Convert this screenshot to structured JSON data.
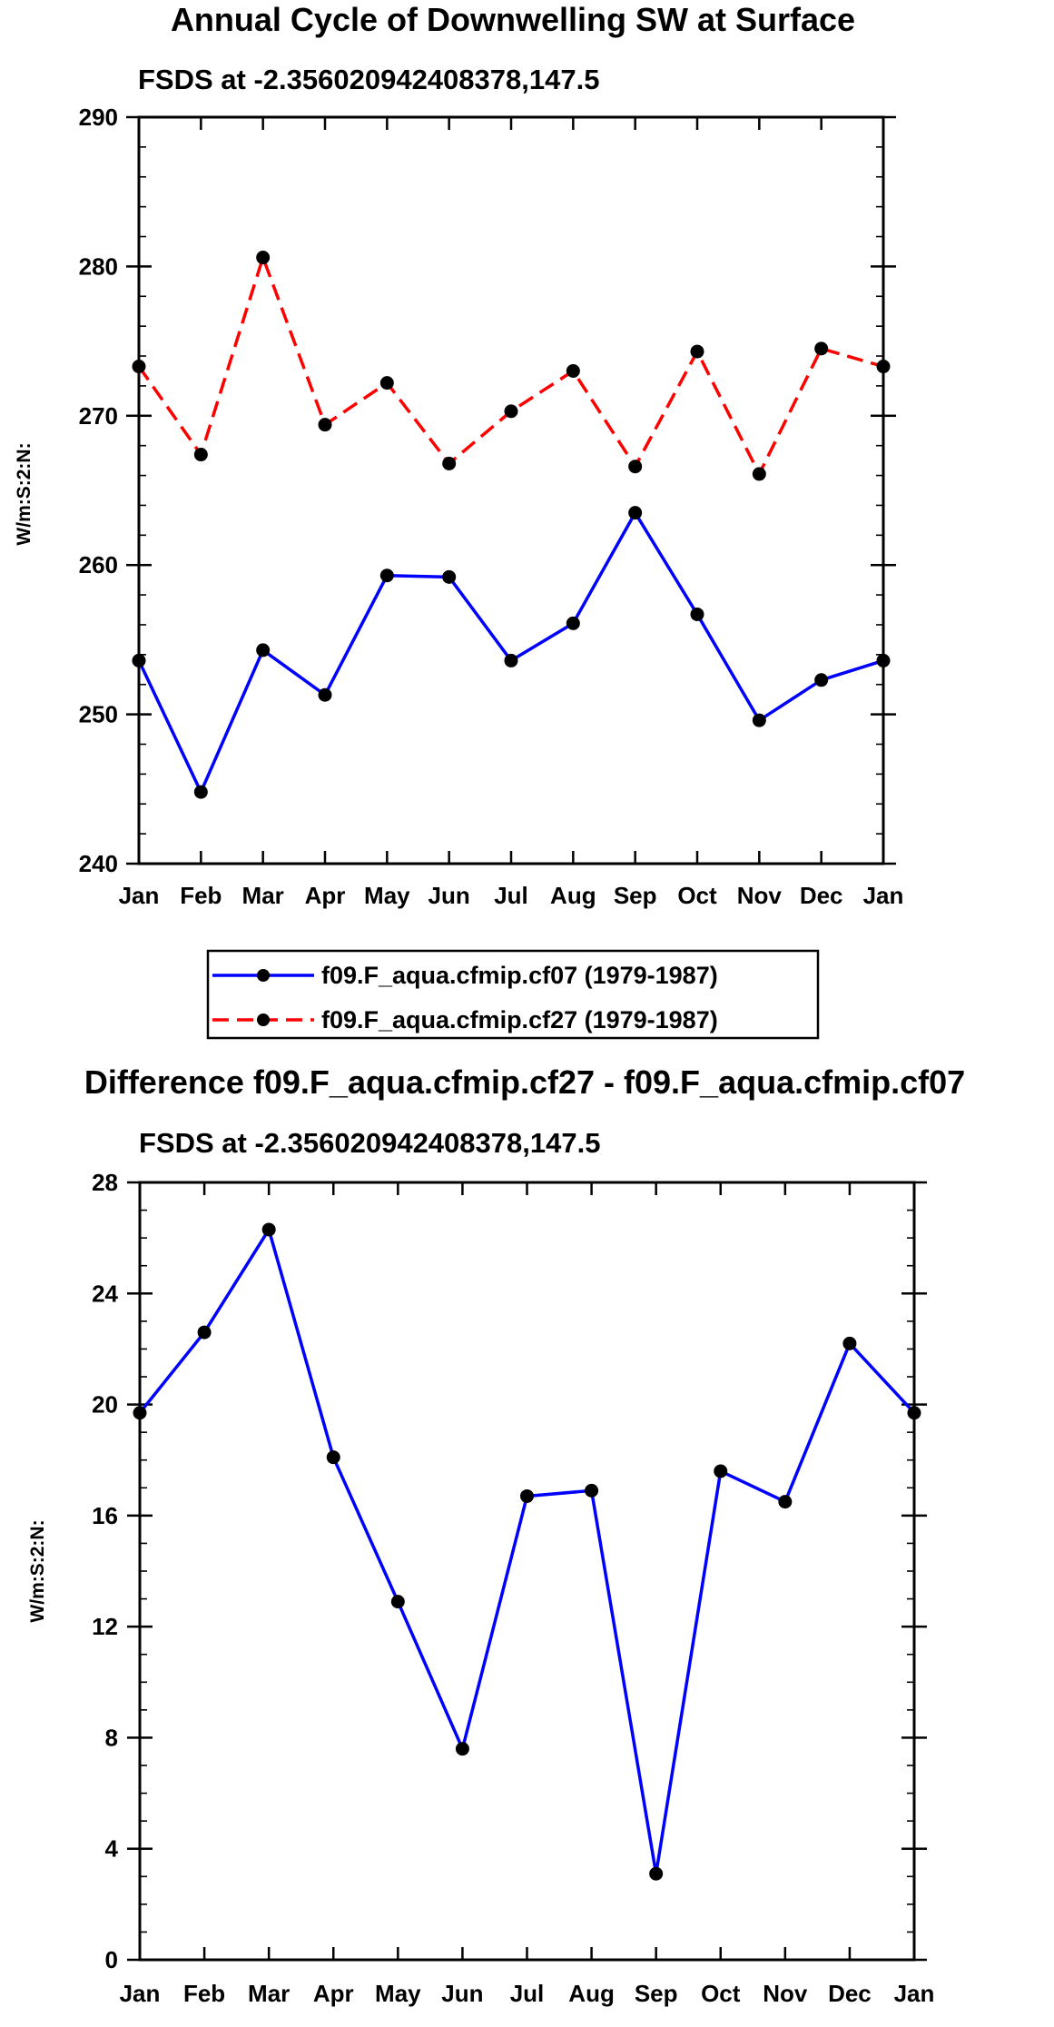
{
  "chart_data": [
    {
      "type": "line",
      "title": "Annual Cycle of Downwelling SW at Surface",
      "subtitle": "FSDS at -2.356020942408378,147.5",
      "ylabel": "W/m:S:2:N:",
      "xlabel": "",
      "categories": [
        "Jan",
        "Feb",
        "Mar",
        "Apr",
        "May",
        "Jun",
        "Jul",
        "Aug",
        "Sep",
        "Oct",
        "Nov",
        "Dec",
        "Jan"
      ],
      "ylim": [
        240,
        290
      ],
      "yticks": [
        240,
        250,
        260,
        270,
        280,
        290
      ],
      "grid": false,
      "legend_position": "bottom",
      "series": [
        {
          "name": "f09.F_aqua.cfmip.cf07 (1979-1987)",
          "color": "#0000ff",
          "dash": "solid",
          "values": [
            253.6,
            244.8,
            254.3,
            251.3,
            259.3,
            259.2,
            253.6,
            256.1,
            263.5,
            256.7,
            249.6,
            252.3,
            253.6
          ]
        },
        {
          "name": "f09.F_aqua.cfmip.cf27 (1979-1987)",
          "color": "#ff0000",
          "dash": "dashed",
          "values": [
            273.3,
            267.4,
            280.6,
            269.4,
            272.2,
            266.8,
            270.3,
            273.0,
            266.6,
            274.3,
            266.1,
            274.5,
            273.3
          ]
        }
      ]
    },
    {
      "type": "line",
      "title": "Difference f09.F_aqua.cfmip.cf27 - f09.F_aqua.cfmip.cf07",
      "subtitle": "FSDS at -2.356020942408378,147.5",
      "ylabel": "W/m:S:2:N:",
      "xlabel": "",
      "categories": [
        "Jan",
        "Feb",
        "Mar",
        "Apr",
        "May",
        "Jun",
        "Jul",
        "Aug",
        "Sep",
        "Oct",
        "Nov",
        "Dec",
        "Jan"
      ],
      "ylim": [
        0,
        28
      ],
      "yticks": [
        0,
        4,
        8,
        12,
        16,
        20,
        24,
        28
      ],
      "grid": false,
      "series": [
        {
          "name": "difference",
          "color": "#0000ff",
          "dash": "solid",
          "values": [
            19.7,
            22.6,
            26.3,
            18.1,
            12.9,
            7.6,
            16.7,
            16.9,
            3.1,
            17.6,
            16.5,
            22.2,
            19.7
          ]
        }
      ]
    }
  ]
}
